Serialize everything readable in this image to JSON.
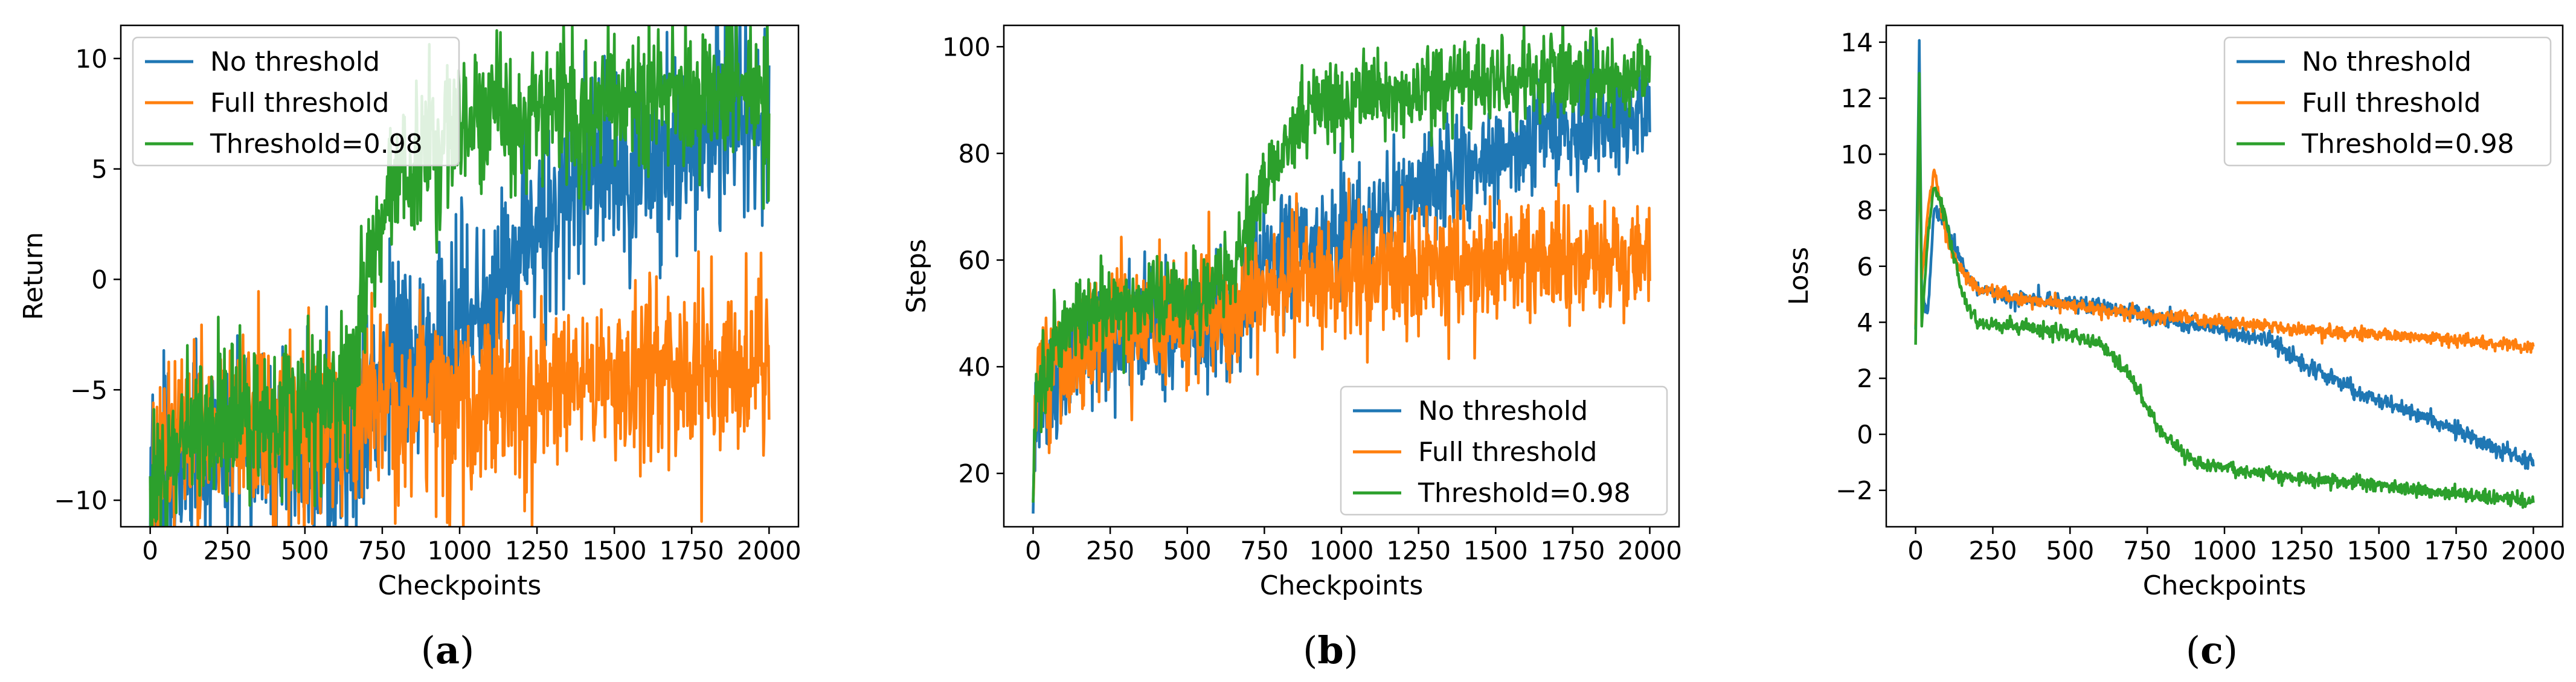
{
  "chart_data": [
    {
      "type": "line",
      "panel": "a",
      "caption": "(a)",
      "caption_letter": "a",
      "xlabel": "Checkpoints",
      "ylabel": "Return",
      "xlim": [
        -95,
        2095
      ],
      "ylim": [
        -11.2,
        11.5
      ],
      "xticks": [
        0,
        250,
        500,
        750,
        1000,
        1250,
        1500,
        1750,
        2000
      ],
      "yticks": [
        -10,
        -5,
        0,
        5,
        10
      ],
      "legend_position": "upper-left",
      "grid": false,
      "series": [
        {
          "name": "No threshold",
          "color": "#1f77b4",
          "trend": {
            "x": [
              0,
              100,
              300,
              500,
              650,
              700,
              800,
              950,
              1100,
              1150,
              1250,
              1400,
              1550,
              1700,
              1850,
              2000
            ],
            "y": [
              -10,
              -8,
              -7.5,
              -8,
              -7.3,
              -6,
              -3.5,
              -3,
              -1.5,
              0.5,
              3,
              4.5,
              5.5,
              6.2,
              7,
              7.5
            ]
          },
          "noise": 2.2
        },
        {
          "name": "Full threshold",
          "color": "#ff7f0e",
          "trend": {
            "x": [
              0,
              100,
              300,
              500,
              650,
              700,
              800,
              1000,
              1200,
              1400,
              1600,
              1800,
              2000
            ],
            "y": [
              -10,
              -7,
              -6.5,
              -7,
              -6.5,
              -6,
              -5.5,
              -5.3,
              -5,
              -4.7,
              -4.3,
              -4,
              -3.8
            ]
          },
          "noise": 2.0
        },
        {
          "name": "Threshold=0.98",
          "color": "#2ca02c",
          "trend": {
            "x": [
              0,
              100,
              300,
              500,
              650,
              700,
              800,
              1000,
              1200,
              1400,
              1600,
              1800,
              2000
            ],
            "y": [
              -10,
              -7,
              -6,
              -6,
              -5,
              0,
              5,
              7,
              7.5,
              7.8,
              8,
              8.2,
              8.3
            ]
          },
          "noise": 1.7
        }
      ]
    },
    {
      "type": "line",
      "panel": "b",
      "caption": "(b)",
      "caption_letter": "b",
      "xlabel": "Checkpoints",
      "ylabel": "Steps",
      "xlim": [
        -95,
        2095
      ],
      "ylim": [
        10,
        104
      ],
      "xticks": [
        0,
        250,
        500,
        750,
        1000,
        1250,
        1500,
        1750,
        2000
      ],
      "yticks": [
        20,
        40,
        60,
        80,
        100
      ],
      "legend_position": "lower-right",
      "grid": false,
      "series": [
        {
          "name": "No threshold",
          "color": "#1f77b4",
          "trend": {
            "x": [
              0,
              10,
              100,
              300,
              500,
              650,
              700,
              800,
              1000,
              1200,
              1400,
              1600,
              1800,
              2000
            ],
            "y": [
              15,
              30,
              40,
              45,
              47,
              50,
              56,
              62,
              65,
              72,
              78,
              82,
              85,
              88
            ]
          },
          "noise": 5.5
        },
        {
          "name": "Full threshold",
          "color": "#ff7f0e",
          "trend": {
            "x": [
              0,
              10,
              100,
              300,
              500,
              650,
              700,
              800,
              1000,
              1200,
              1400,
              1600,
              1800,
              2000
            ],
            "y": [
              15,
              35,
              45,
              47,
              48,
              50,
              53,
              56,
              57,
              58,
              59,
              60,
              61,
              62
            ]
          },
          "noise": 6.0
        },
        {
          "name": "Threshold=0.98",
          "color": "#2ca02c",
          "trend": {
            "x": [
              0,
              10,
              100,
              300,
              500,
              650,
              700,
              800,
              900,
              1000,
              1200,
              1400,
              1600,
              1800,
              2000
            ],
            "y": [
              15,
              35,
              48,
              52,
              53,
              56,
              68,
              80,
              88,
              90,
              92,
              93,
              94,
              94.5,
              95
            ]
          },
          "noise": 4.0
        }
      ]
    },
    {
      "type": "line",
      "panel": "c",
      "caption": "(c)",
      "caption_letter": "c",
      "xlabel": "Checkpoints",
      "ylabel": "Loss",
      "xlim": [
        -95,
        2095
      ],
      "ylim": [
        -3.3,
        14.6
      ],
      "xticks": [
        0,
        250,
        500,
        750,
        1000,
        1250,
        1500,
        1750,
        2000
      ],
      "yticks": [
        -2,
        0,
        2,
        4,
        6,
        8,
        10,
        12,
        14
      ],
      "legend_position": "upper-right",
      "grid": false,
      "series": [
        {
          "name": "No threshold",
          "color": "#1f77b4",
          "trend": {
            "x": [
              0,
              5,
              12,
              20,
              40,
              60,
              100,
              150,
              200,
              300,
              500,
              700,
              800,
              1000,
              1150,
              1300,
              1500,
              1700,
              1900,
              2000
            ],
            "y": [
              4.0,
              8.0,
              13.8,
              5.0,
              4.5,
              8.0,
              7.5,
              6.0,
              5.2,
              4.9,
              4.7,
              4.4,
              4.1,
              3.7,
              3.3,
              2.2,
              1.2,
              0.4,
              -0.6,
              -1.0
            ]
          },
          "noise": 0.15
        },
        {
          "name": "Full threshold",
          "color": "#ff7f0e",
          "trend": {
            "x": [
              0,
              5,
              12,
              20,
              40,
              60,
              100,
              150,
              200,
              300,
              500,
              700,
              1000,
              1300,
              1600,
              1900,
              2000
            ],
            "y": [
              4.0,
              7.0,
              10.0,
              5.5,
              8.0,
              9.5,
              7.0,
              5.8,
              5.2,
              4.9,
              4.6,
              4.3,
              4.0,
              3.7,
              3.5,
              3.2,
              3.1
            ]
          },
          "noise": 0.12
        },
        {
          "name": "Threshold=0.98",
          "color": "#2ca02c",
          "trend": {
            "x": [
              0,
              5,
              12,
              20,
              40,
              60,
              100,
              150,
              200,
              300,
              500,
              600,
              700,
              800,
              900,
              1000,
              1200,
              1500,
              1800,
              2000
            ],
            "y": [
              3.3,
              7.0,
              13.0,
              4.0,
              7.0,
              9.0,
              7.5,
              5.0,
              4.0,
              3.9,
              3.6,
              3.2,
              2.0,
              0.0,
              -1.0,
              -1.2,
              -1.5,
              -1.8,
              -2.2,
              -2.4
            ]
          },
          "noise": 0.13
        }
      ]
    }
  ]
}
